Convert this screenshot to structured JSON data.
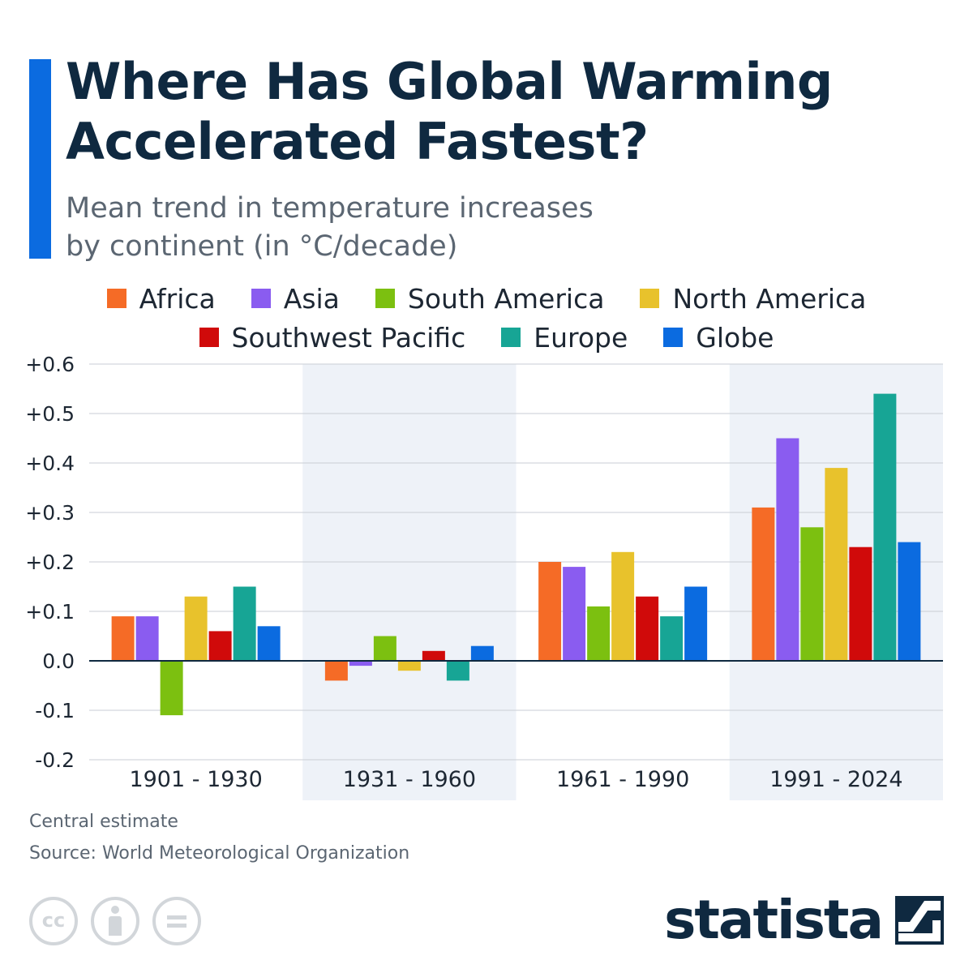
{
  "title": "Where Has Global Warming Accelerated Fastest?",
  "subtitle_line1": "Mean trend in temperature increases",
  "subtitle_line2": "by continent (in °C/decade)",
  "footnote": "Central estimate",
  "source": "Source: World Meteorological Organization",
  "brand": "statista",
  "license_icons": [
    "cc-icon",
    "attribution-icon",
    "no-derivatives-icon"
  ],
  "colors": {
    "accent": "#0b6be0",
    "band": "#eef2f8",
    "grid": "#c9ced4",
    "zero_line": "#0f2940"
  },
  "chart_data": {
    "type": "bar",
    "title": "Where Has Global Warming Accelerated Fastest?",
    "subtitle": "Mean trend in temperature increases by continent (in °C/decade)",
    "categories": [
      "1901 - 1930",
      "1931 - 1960",
      "1961 - 1990",
      "1991 - 2024"
    ],
    "series": [
      {
        "name": "Africa",
        "color": "#f56b26",
        "values": [
          0.09,
          -0.04,
          0.2,
          0.31
        ]
      },
      {
        "name": "Asia",
        "color": "#8a5cf0",
        "values": [
          0.09,
          -0.01,
          0.19,
          0.45
        ]
      },
      {
        "name": "South America",
        "color": "#7cc010",
        "values": [
          -0.11,
          0.05,
          0.11,
          0.27
        ]
      },
      {
        "name": "North America",
        "color": "#e8c22c",
        "values": [
          0.13,
          -0.02,
          0.22,
          0.39
        ]
      },
      {
        "name": "Southwest Pacific",
        "color": "#d00a0a",
        "values": [
          0.06,
          0.02,
          0.13,
          0.23
        ]
      },
      {
        "name": "Europe",
        "color": "#17a595",
        "values": [
          0.15,
          -0.04,
          0.09,
          0.54
        ]
      },
      {
        "name": "Globe",
        "color": "#0b6be0",
        "values": [
          0.07,
          0.03,
          0.15,
          0.24
        ]
      }
    ],
    "yticks": [
      0.6,
      0.5,
      0.4,
      0.3,
      0.2,
      0.1,
      0.0,
      -0.1,
      -0.2
    ],
    "ytick_labels": [
      "+0.6",
      "+0.5",
      "+0.4",
      "+0.3",
      "+0.2",
      "+0.1",
      "0.0",
      "-0.1",
      "-0.2"
    ],
    "ylim": [
      -0.2,
      0.6
    ],
    "xlabel": "",
    "ylabel": "",
    "grid": true,
    "legend": "top-center"
  }
}
